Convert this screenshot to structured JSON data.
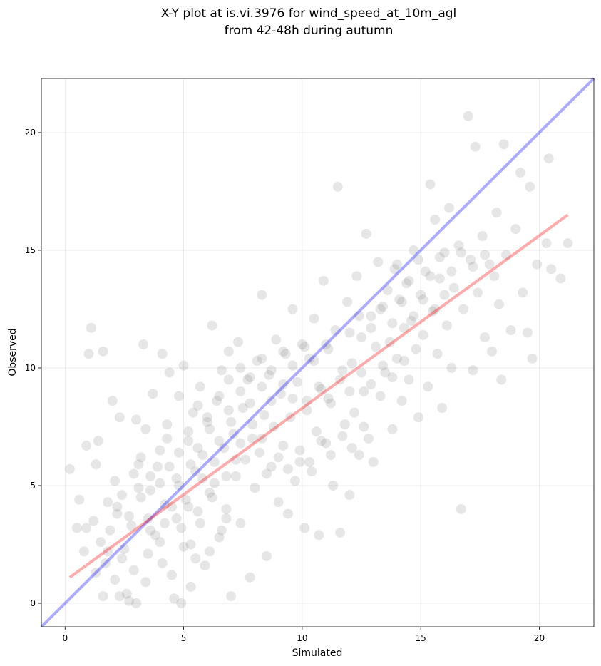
{
  "chart_data": {
    "type": "scatter",
    "title": [
      "X-Y plot at is.vi.3976 for wind_speed_at_10m_agl",
      "from 42-48h during autumn"
    ],
    "xlabel": "Simulated",
    "ylabel": "Observed",
    "xlim": [
      -1.0,
      22.3
    ],
    "ylim": [
      -1.0,
      22.3
    ],
    "x_ticks": [
      0,
      5,
      10,
      15,
      20
    ],
    "y_ticks": [
      0,
      5,
      10,
      15,
      20
    ],
    "grid": true,
    "point_color": "#808080",
    "identity_line": {
      "color": "#0000ff",
      "from": [
        -1.0,
        -1.0
      ],
      "to": [
        22.3,
        22.3
      ]
    },
    "fit_line": {
      "color": "#ff0000",
      "from": [
        0.2,
        1.1
      ],
      "to": [
        21.2,
        16.5
      ]
    },
    "points": [
      [
        0.2,
        5.7
      ],
      [
        0.5,
        3.2
      ],
      [
        0.6,
        4.4
      ],
      [
        0.8,
        2.2
      ],
      [
        0.9,
        6.7
      ],
      [
        1.0,
        10.6
      ],
      [
        1.1,
        11.7
      ],
      [
        1.2,
        3.5
      ],
      [
        1.3,
        5.9
      ],
      [
        1.4,
        6.9
      ],
      [
        1.5,
        2.6
      ],
      [
        1.6,
        10.7
      ],
      [
        1.7,
        1.7
      ],
      [
        1.8,
        4.3
      ],
      [
        1.9,
        3.1
      ],
      [
        2.0,
        8.6
      ],
      [
        2.1,
        5.2
      ],
      [
        2.2,
        3.8
      ],
      [
        2.3,
        7.9
      ],
      [
        2.4,
        4.6
      ],
      [
        2.5,
        2.3
      ],
      [
        2.6,
        0.4
      ],
      [
        2.7,
        0.1
      ],
      [
        2.8,
        3.3
      ],
      [
        2.9,
        5.5
      ],
      [
        3.0,
        7.8
      ],
      [
        3.1,
        4.9
      ],
      [
        3.2,
        6.2
      ],
      [
        3.3,
        11.0
      ],
      [
        3.4,
        7.4
      ],
      [
        3.5,
        3.6
      ],
      [
        3.6,
        4.8
      ],
      [
        3.7,
        8.9
      ],
      [
        3.8,
        2.9
      ],
      [
        3.9,
        5.8
      ],
      [
        4.0,
        6.5
      ],
      [
        4.1,
        10.6
      ],
      [
        4.2,
        3.4
      ],
      [
        4.3,
        7.6
      ],
      [
        4.4,
        9.8
      ],
      [
        4.5,
        4.1
      ],
      [
        4.6,
        0.2
      ],
      [
        4.7,
        5.3
      ],
      [
        4.8,
        8.8
      ],
      [
        4.9,
        3.2
      ],
      [
        5.0,
        10.1
      ],
      [
        5.1,
        4.4
      ],
      [
        5.2,
        6.9
      ],
      [
        5.3,
        2.5
      ],
      [
        5.4,
        8.1
      ],
      [
        5.5,
        5.6
      ],
      [
        5.6,
        3.9
      ],
      [
        5.7,
        9.2
      ],
      [
        5.8,
        6.3
      ],
      [
        5.9,
        1.6
      ],
      [
        6.0,
        7.7
      ],
      [
        6.1,
        4.7
      ],
      [
        6.2,
        11.8
      ],
      [
        6.3,
        5.1
      ],
      [
        6.4,
        8.6
      ],
      [
        6.5,
        2.8
      ],
      [
        6.6,
        9.9
      ],
      [
        6.7,
        6.6
      ],
      [
        6.8,
        4.0
      ],
      [
        6.9,
        10.7
      ],
      [
        7.0,
        0.3
      ],
      [
        7.1,
        7.2
      ],
      [
        7.2,
        5.4
      ],
      [
        7.3,
        11.1
      ],
      [
        7.4,
        3.4
      ],
      [
        7.5,
        8.3
      ],
      [
        7.6,
        6.1
      ],
      [
        7.7,
        9.5
      ],
      [
        7.8,
        1.1
      ],
      [
        7.9,
        7.0
      ],
      [
        8.0,
        4.9
      ],
      [
        8.1,
        10.3
      ],
      [
        8.2,
        6.4
      ],
      [
        8.3,
        13.1
      ],
      [
        8.4,
        8.0
      ],
      [
        8.5,
        2.0
      ],
      [
        8.6,
        9.7
      ],
      [
        8.7,
        5.8
      ],
      [
        8.8,
        7.5
      ],
      [
        8.9,
        11.2
      ],
      [
        9.0,
        4.3
      ],
      [
        9.1,
        8.9
      ],
      [
        9.2,
        6.7
      ],
      [
        9.3,
        10.6
      ],
      [
        9.4,
        3.8
      ],
      [
        9.5,
        7.9
      ],
      [
        9.6,
        12.5
      ],
      [
        9.7,
        5.2
      ],
      [
        9.8,
        9.4
      ],
      [
        9.9,
        6.0
      ],
      [
        10.0,
        11.0
      ],
      [
        10.1,
        3.2
      ],
      [
        10.2,
        8.2
      ],
      [
        10.3,
        10.4
      ],
      [
        10.4,
        5.6
      ],
      [
        10.5,
        12.1
      ],
      [
        10.6,
        7.3
      ],
      [
        10.7,
        2.9
      ],
      [
        10.8,
        9.1
      ],
      [
        10.9,
        13.7
      ],
      [
        11.0,
        6.8
      ],
      [
        11.1,
        10.8
      ],
      [
        11.2,
        8.5
      ],
      [
        11.3,
        5.0
      ],
      [
        11.4,
        11.6
      ],
      [
        11.5,
        17.7
      ],
      [
        11.6,
        3.0
      ],
      [
        11.7,
        9.9
      ],
      [
        11.8,
        7.6
      ],
      [
        11.9,
        12.8
      ],
      [
        12.0,
        4.6
      ],
      [
        12.1,
        10.2
      ],
      [
        12.2,
        8.1
      ],
      [
        12.3,
        13.9
      ],
      [
        12.4,
        6.3
      ],
      [
        12.5,
        11.3
      ],
      [
        12.6,
        9.0
      ],
      [
        12.7,
        15.7
      ],
      [
        12.8,
        7.0
      ],
      [
        12.9,
        12.2
      ],
      [
        13.0,
        6.0
      ],
      [
        13.1,
        10.9
      ],
      [
        13.2,
        14.5
      ],
      [
        13.3,
        8.8
      ],
      [
        13.4,
        12.6
      ],
      [
        13.5,
        9.8
      ],
      [
        13.6,
        13.3
      ],
      [
        13.7,
        11.1
      ],
      [
        13.8,
        7.4
      ],
      [
        13.9,
        14.2
      ],
      [
        14.0,
        10.4
      ],
      [
        14.1,
        12.9
      ],
      [
        14.2,
        8.6
      ],
      [
        14.3,
        11.7
      ],
      [
        14.4,
        13.6
      ],
      [
        14.5,
        9.5
      ],
      [
        14.6,
        12.0
      ],
      [
        14.7,
        15.0
      ],
      [
        14.8,
        10.8
      ],
      [
        14.9,
        7.9
      ],
      [
        15.0,
        13.1
      ],
      [
        15.1,
        11.4
      ],
      [
        15.2,
        14.1
      ],
      [
        15.3,
        9.2
      ],
      [
        15.4,
        17.8
      ],
      [
        15.5,
        12.4
      ],
      [
        15.6,
        16.3
      ],
      [
        15.7,
        10.6
      ],
      [
        15.8,
        13.8
      ],
      [
        15.9,
        8.3
      ],
      [
        16.0,
        14.9
      ],
      [
        16.1,
        11.8
      ],
      [
        16.2,
        16.8
      ],
      [
        16.3,
        10.0
      ],
      [
        16.4,
        13.4
      ],
      [
        16.6,
        15.2
      ],
      [
        16.7,
        4.0
      ],
      [
        16.8,
        12.5
      ],
      [
        17.0,
        20.7
      ],
      [
        17.1,
        14.6
      ],
      [
        17.2,
        9.9
      ],
      [
        17.3,
        19.4
      ],
      [
        17.4,
        13.2
      ],
      [
        17.6,
        15.6
      ],
      [
        17.7,
        11.3
      ],
      [
        17.9,
        14.4
      ],
      [
        18.0,
        10.7
      ],
      [
        18.2,
        16.6
      ],
      [
        18.3,
        12.7
      ],
      [
        18.4,
        9.5
      ],
      [
        18.5,
        19.5
      ],
      [
        18.6,
        14.8
      ],
      [
        18.8,
        11.6
      ],
      [
        19.0,
        15.9
      ],
      [
        19.2,
        18.3
      ],
      [
        19.3,
        13.2
      ],
      [
        19.5,
        11.5
      ],
      [
        19.6,
        17.7
      ],
      [
        19.7,
        10.4
      ],
      [
        19.9,
        14.4
      ],
      [
        20.3,
        15.3
      ],
      [
        20.4,
        18.9
      ],
      [
        20.5,
        14.2
      ],
      [
        20.9,
        13.8
      ],
      [
        21.2,
        15.3
      ],
      [
        0.9,
        3.2
      ],
      [
        1.3,
        1.3
      ],
      [
        1.6,
        0.3
      ],
      [
        2.1,
        1.0
      ],
      [
        2.3,
        0.3
      ],
      [
        3.0,
        0.0
      ],
      [
        3.4,
        0.9
      ],
      [
        4.1,
        1.7
      ],
      [
        4.9,
        0.0
      ],
      [
        5.3,
        0.7
      ],
      [
        1.8,
        2.2
      ],
      [
        2.4,
        1.9
      ],
      [
        2.9,
        1.4
      ],
      [
        3.5,
        2.1
      ],
      [
        4.0,
        2.6
      ],
      [
        4.5,
        1.2
      ],
      [
        5.0,
        2.4
      ],
      [
        5.5,
        1.9
      ],
      [
        6.1,
        2.2
      ],
      [
        6.6,
        3.1
      ],
      [
        2.2,
        4.1
      ],
      [
        2.7,
        3.7
      ],
      [
        3.2,
        4.5
      ],
      [
        3.6,
        3.1
      ],
      [
        4.2,
        4.2
      ],
      [
        4.7,
        3.6
      ],
      [
        5.2,
        4.1
      ],
      [
        5.7,
        3.4
      ],
      [
        6.2,
        4.5
      ],
      [
        6.8,
        3.6
      ],
      [
        3.1,
        5.9
      ],
      [
        3.6,
        5.4
      ],
      [
        4.0,
        5.1
      ],
      [
        4.4,
        5.8
      ],
      [
        4.8,
        5.0
      ],
      [
        5.3,
        5.9
      ],
      [
        5.8,
        5.3
      ],
      [
        6.3,
        6.0
      ],
      [
        6.8,
        5.4
      ],
      [
        7.2,
        6.1
      ],
      [
        4.3,
        7.0
      ],
      [
        4.8,
        6.4
      ],
      [
        5.2,
        7.3
      ],
      [
        5.6,
        6.6
      ],
      [
        6.1,
        7.4
      ],
      [
        6.5,
        6.9
      ],
      [
        7.0,
        7.7
      ],
      [
        7.4,
        6.8
      ],
      [
        7.9,
        7.6
      ],
      [
        8.3,
        7.0
      ],
      [
        5.6,
        8.4
      ],
      [
        6.0,
        7.9
      ],
      [
        6.5,
        8.8
      ],
      [
        6.9,
        8.2
      ],
      [
        7.4,
        9.0
      ],
      [
        7.8,
        8.5
      ],
      [
        8.3,
        9.2
      ],
      [
        8.7,
        8.6
      ],
      [
        9.2,
        9.3
      ],
      [
        9.6,
        8.7
      ],
      [
        6.9,
        9.5
      ],
      [
        7.4,
        10.0
      ],
      [
        7.8,
        9.6
      ],
      [
        8.3,
        10.4
      ],
      [
        8.7,
        9.9
      ],
      [
        9.2,
        10.7
      ],
      [
        9.6,
        10.1
      ],
      [
        10.1,
        10.9
      ],
      [
        10.5,
        10.3
      ],
      [
        11.0,
        11.0
      ],
      [
        8.5,
        5.5
      ],
      [
        9.0,
        6.2
      ],
      [
        9.4,
        5.7
      ],
      [
        9.9,
        6.5
      ],
      [
        10.3,
        6.0
      ],
      [
        10.8,
        6.9
      ],
      [
        11.2,
        6.3
      ],
      [
        11.7,
        7.1
      ],
      [
        12.1,
        6.6
      ],
      [
        12.6,
        7.5
      ],
      [
        10.2,
        8.6
      ],
      [
        10.7,
        9.2
      ],
      [
        11.1,
        8.7
      ],
      [
        11.6,
        9.5
      ],
      [
        12.0,
        9.0
      ],
      [
        12.5,
        9.8
      ],
      [
        12.9,
        9.3
      ],
      [
        13.4,
        10.1
      ],
      [
        13.8,
        9.6
      ],
      [
        14.3,
        10.3
      ],
      [
        12.0,
        11.5
      ],
      [
        12.4,
        12.2
      ],
      [
        12.9,
        11.7
      ],
      [
        13.3,
        12.5
      ],
      [
        13.8,
        11.9
      ],
      [
        14.2,
        12.8
      ],
      [
        14.7,
        12.2
      ],
      [
        15.1,
        12.9
      ],
      [
        15.6,
        12.5
      ],
      [
        16.0,
        13.1
      ],
      [
        14.0,
        14.4
      ],
      [
        14.5,
        13.7
      ],
      [
        14.9,
        14.6
      ],
      [
        15.4,
        13.9
      ],
      [
        15.8,
        14.7
      ],
      [
        16.3,
        14.1
      ],
      [
        16.7,
        14.9
      ],
      [
        17.2,
        14.3
      ],
      [
        17.7,
        14.8
      ],
      [
        18.1,
        13.9
      ]
    ]
  }
}
